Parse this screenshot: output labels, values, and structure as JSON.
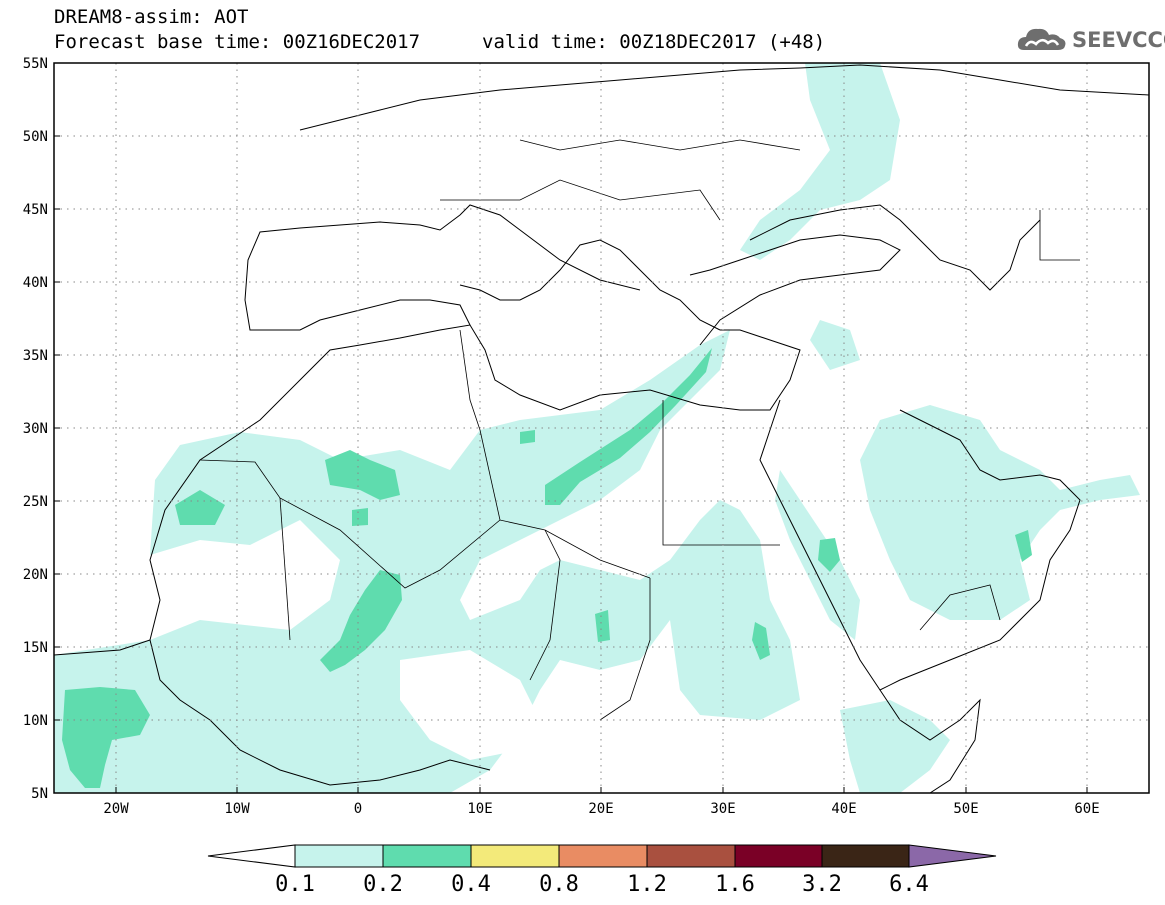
{
  "header": {
    "title": "DREAM8-assim: AOT",
    "base_time": "Forecast base time: 00Z16DEC2017",
    "valid_time": "valid time: 00Z18DEC2017 (+48)",
    "logo_text": "SEEVCCC"
  },
  "map": {
    "lat_labels": [
      "55N",
      "50N",
      "45N",
      "40N",
      "35N",
      "30N",
      "25N",
      "20N",
      "15N",
      "10N",
      "5N"
    ],
    "lon_labels": [
      "20W",
      "10W",
      "0",
      "10E",
      "20E",
      "30E",
      "40E",
      "50E",
      "60E"
    ],
    "lat_range": [
      5,
      55
    ],
    "lon_range": [
      -25,
      65
    ],
    "grid": "dotted"
  },
  "colorbar": {
    "levels": [
      "0.1",
      "0.2",
      "0.4",
      "0.8",
      "1.2",
      "1.6",
      "3.2",
      "6.4"
    ],
    "colors": [
      "#c6f3ec",
      "#5fdcae",
      "#f3ea7a",
      "#e98c63",
      "#a9503f",
      "#7a0026",
      "#3a2516",
      "#8b68a8"
    ],
    "under_color": "#ffffff"
  }
}
